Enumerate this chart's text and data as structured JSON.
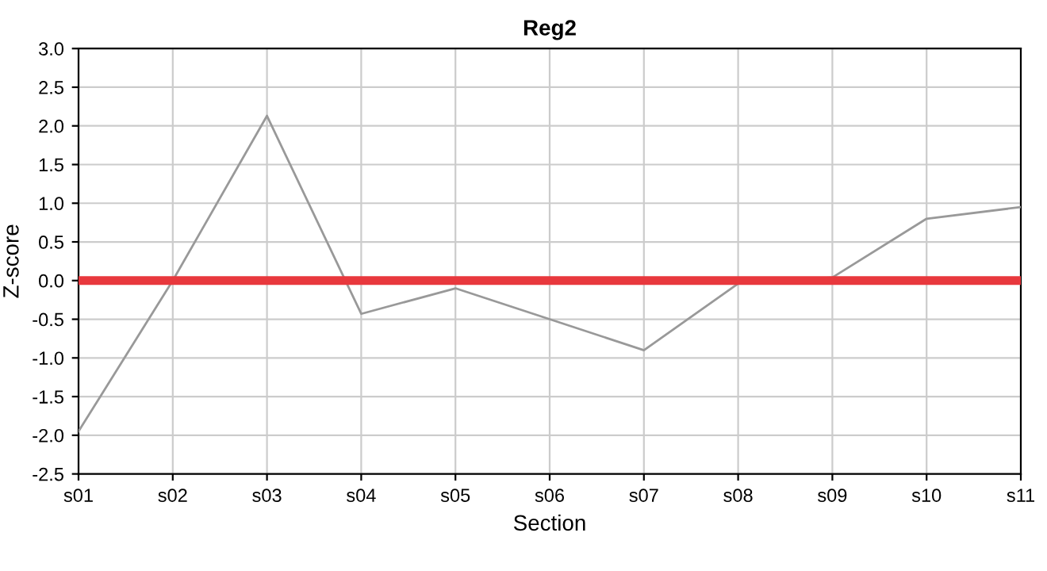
{
  "chart_data": {
    "type": "line",
    "title": "Reg2",
    "xlabel": "Section",
    "ylabel": "Z-score",
    "categories": [
      "s01",
      "s02",
      "s03",
      "s04",
      "s05",
      "s06",
      "s07",
      "s08",
      "s09",
      "s10",
      "s11"
    ],
    "series": [
      {
        "color": "#999999",
        "values": [
          -1.95,
          0.0,
          2.13,
          -0.43,
          -0.1,
          -0.5,
          -0.9,
          -0.04,
          0.04,
          0.8,
          0.95
        ]
      }
    ],
    "ylim": [
      -2.5,
      3.0
    ],
    "yticks": [
      {
        "value": -2.5,
        "label": "-2.5"
      },
      {
        "value": -2.0,
        "label": "-2.0"
      },
      {
        "value": -1.5,
        "label": "-1.5"
      },
      {
        "value": -1.0,
        "label": "-1.0"
      },
      {
        "value": -0.5,
        "label": "-0.5"
      },
      {
        "value": 0.0,
        "label": "0.0"
      },
      {
        "value": 0.5,
        "label": "0.5"
      },
      {
        "value": 1.0,
        "label": "1.0"
      },
      {
        "value": 1.5,
        "label": "1.5"
      },
      {
        "value": 2.0,
        "label": "2.0"
      },
      {
        "value": 2.5,
        "label": "2.5"
      },
      {
        "value": 3.0,
        "label": "3.0"
      }
    ],
    "ref_lines": [
      {
        "axis": "y",
        "value": 0.0,
        "color": "#e8383d"
      }
    ],
    "grid": true,
    "marker": "none",
    "line_style": "solid"
  }
}
